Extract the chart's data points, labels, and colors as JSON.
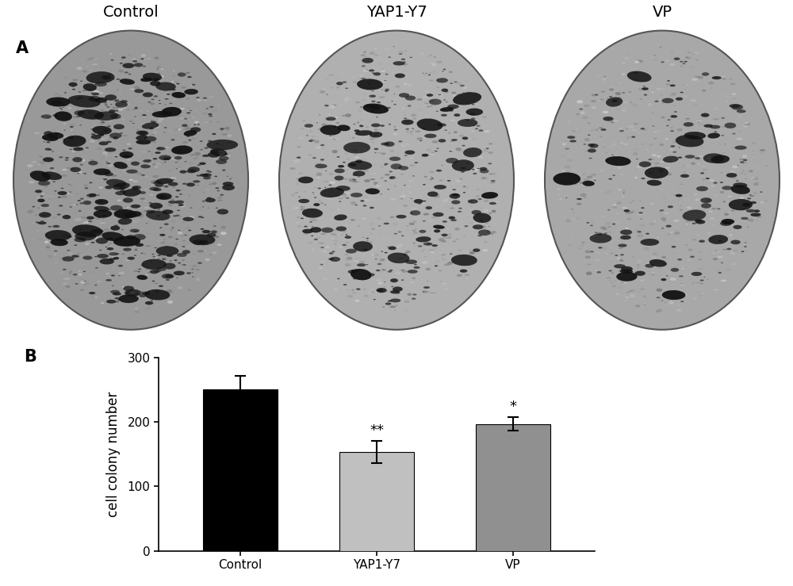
{
  "panel_labels": [
    "A",
    "B"
  ],
  "top_labels": [
    "Control",
    "YAP1-Y7",
    "VP"
  ],
  "bar_categories": [
    "Control",
    "YAP1-Y7",
    "VP"
  ],
  "bar_values": [
    250,
    153,
    197
  ],
  "bar_errors": [
    22,
    17,
    10
  ],
  "bar_colors": [
    "#000000",
    "#c0c0c0",
    "#909090"
  ],
  "significance_labels": [
    "",
    "**",
    "*"
  ],
  "ylabel": "cell colony number",
  "ylim": [
    0,
    300
  ],
  "yticks": [
    0,
    100,
    200,
    300
  ],
  "background_color": "#ffffff",
  "tick_fontsize": 11,
  "label_fontsize": 12,
  "panel_label_fontsize": 15,
  "dish_bg_colors": [
    "#999999",
    "#b0b0b0",
    "#a8a8a8"
  ],
  "dish_spot_counts_large": [
    60,
    30,
    25
  ],
  "dish_spot_counts_medium": [
    150,
    100,
    60
  ],
  "dish_spot_counts_small": [
    300,
    200,
    100
  ]
}
